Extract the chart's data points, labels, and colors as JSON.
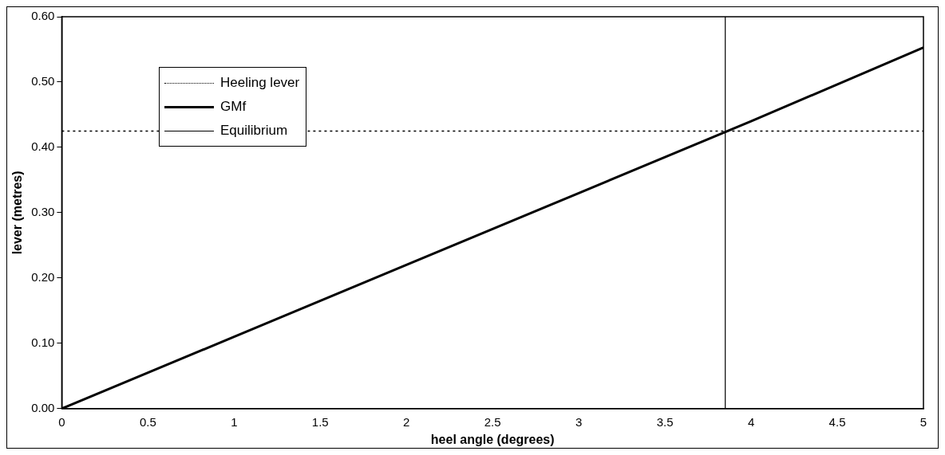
{
  "chart_data": {
    "type": "line",
    "xlabel": "heel angle (degrees)",
    "ylabel": "lever (metres)",
    "xlim": [
      0,
      5
    ],
    "xticks": [
      0,
      0.5,
      1,
      1.5,
      2,
      2.5,
      3,
      3.5,
      4,
      4.5,
      5
    ],
    "ylim": [
      0,
      0.6
    ],
    "yticks": [
      {
        "value": 0,
        "label": "0.00"
      },
      {
        "value": 0.1,
        "label": "0.10"
      },
      {
        "value": 0.2,
        "label": "0.20"
      },
      {
        "value": 0.3,
        "label": "0.30"
      },
      {
        "value": 0.4,
        "label": "0.40"
      },
      {
        "value": 0.5,
        "label": "0.50"
      },
      {
        "value": 0.6,
        "label": "0.60"
      }
    ],
    "grid": false,
    "legend": "top left",
    "marker": "none",
    "series": [
      {
        "name": "Heeling lever",
        "color": "#000000",
        "line_style": "dotted",
        "x": [
          0,
          5
        ],
        "values": [
          0.425,
          0.425
        ]
      },
      {
        "name": "GMf",
        "color": "#000000",
        "line_style": "solid",
        "x": [
          0,
          1,
          2,
          3,
          4,
          5
        ],
        "values": [
          0,
          0.11,
          0.22,
          0.33,
          0.44,
          0.553
        ]
      },
      {
        "name": "Equilibrium",
        "color": "#000000",
        "line_style": "solid",
        "x": [
          3.85,
          3.85
        ],
        "values": [
          0,
          0.6
        ]
      }
    ]
  }
}
